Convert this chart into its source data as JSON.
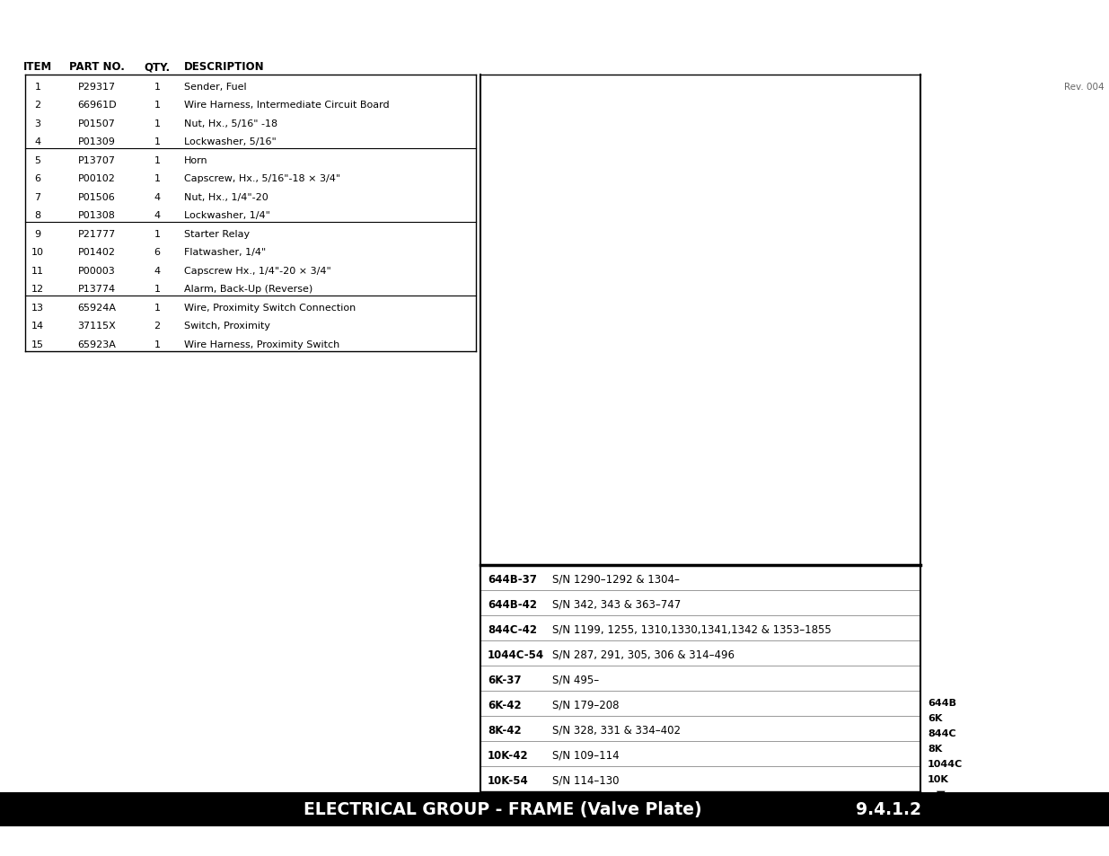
{
  "title": "ELECTRICAL GROUP - FRAME (Valve Plate)",
  "section": "9.4.1.2",
  "rev": "Rev. 004",
  "header_cols": [
    "ITEM",
    "PART NO.",
    "QTY.",
    "DESCRIPTION"
  ],
  "parts": [
    [
      "1",
      "P29317",
      "1",
      "Sender, Fuel"
    ],
    [
      "2",
      "66961D",
      "1",
      "Wire Harness, Intermediate Circuit Board"
    ],
    [
      "3",
      "P01507",
      "1",
      "Nut, Hx., 5/16\" -18"
    ],
    [
      "4",
      "P01309",
      "1",
      "Lockwasher, 5/16\""
    ],
    [
      "5",
      "P13707",
      "1",
      "Horn"
    ],
    [
      "6",
      "P00102",
      "1",
      "Capscrew, Hx., 5/16\"-18 × 3/4\""
    ],
    [
      "7",
      "P01506",
      "4",
      "Nut, Hx., 1/4\"-20"
    ],
    [
      "8",
      "P01308",
      "4",
      "Lockwasher, 1/4\""
    ],
    [
      "9",
      "P21777",
      "1",
      "Starter Relay"
    ],
    [
      "10",
      "P01402",
      "6",
      "Flatwasher, 1/4\""
    ],
    [
      "11",
      "P00003",
      "4",
      "Capscrew Hx., 1/4\"-20 × 3/4\""
    ],
    [
      "12",
      "P13774",
      "1",
      "Alarm, Back-Up (Reverse)"
    ],
    [
      "13",
      "65924A",
      "1",
      "Wire, Proximity Switch Connection"
    ],
    [
      "14",
      "37115X",
      "2",
      "Switch, Proximity"
    ],
    [
      "15",
      "65923A",
      "1",
      "Wire Harness, Proximity Switch"
    ]
  ],
  "group_separators": [
    4,
    8,
    12
  ],
  "sn_entries": [
    [
      "644B-37",
      "S/N 1290–1292 & 1304–"
    ],
    [
      "644B-42",
      "S/N 342, 343 & 363–747"
    ],
    [
      "844C-42",
      "S/N 1199, 1255, 1310,1330,1341,1342 & 1353–1855"
    ],
    [
      "1044C-54",
      "S/N 287, 291, 305, 306 & 314–496"
    ],
    [
      "6K-37",
      "S/N 495–"
    ],
    [
      "6K-42",
      "S/N 179–208"
    ],
    [
      "8K-42",
      "S/N 328, 331 & 334–402"
    ],
    [
      "10K-42",
      "S/N 109–114"
    ],
    [
      "10K-54",
      "S/N 114–130"
    ]
  ],
  "legend_items": [
    "644B",
    "6K",
    "844C",
    "8K",
    "1044C",
    "10K"
  ],
  "bg_color": "#ffffff",
  "title_bg": "#000000",
  "title_fg": "#ffffff"
}
